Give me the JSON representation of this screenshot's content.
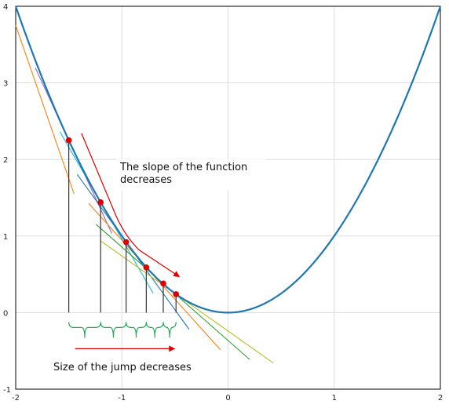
{
  "chart_data": {
    "type": "line",
    "xlim": [
      -2,
      2
    ],
    "ylim": [
      -1,
      4
    ],
    "grid": true,
    "x_ticks": [
      "-2",
      "-1",
      "0",
      "1",
      "2"
    ],
    "y_ticks": [
      "-1",
      "0",
      "1",
      "2",
      "3",
      "4"
    ],
    "curve": {
      "function": "y = x^2",
      "color": "#1f77b4"
    },
    "points": [
      {
        "x": -1.5,
        "y": 2.25
      },
      {
        "x": -1.2,
        "y": 1.44
      },
      {
        "x": -0.96,
        "y": 0.92
      },
      {
        "x": -0.77,
        "y": 0.59
      },
      {
        "x": -0.61,
        "y": 0.38
      },
      {
        "x": -0.49,
        "y": 0.24
      }
    ],
    "tangent_colors": [
      "#9467bd",
      "#17becf",
      "#1f77b4",
      "#ff7f0e",
      "#2ca02c",
      "#bcbd22"
    ],
    "extra_tangent": {
      "x": -2.0,
      "color": "#ff7f0e"
    },
    "point_color": "#e00000",
    "brace_color": "#22aa55",
    "arrow_color": "#e00000",
    "annotations": [
      {
        "id": "slope",
        "lines": [
          "The slope of the function",
          "decreases"
        ]
      },
      {
        "id": "jump",
        "lines": [
          "Size of the jump decreases"
        ]
      }
    ]
  }
}
